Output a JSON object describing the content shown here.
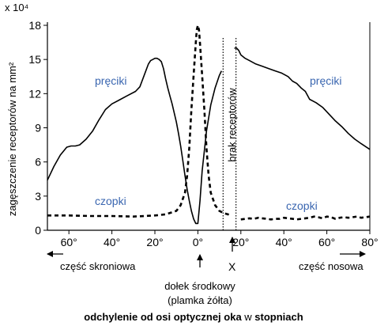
{
  "chart_data": {
    "type": "line",
    "title": "",
    "ylabel": "zagęszczenie receptorów na mm²",
    "y_scale_label": "x 10⁴",
    "xlabel_parts": [
      {
        "text": "odchylenie od osi optycznej oka",
        "bold": true
      },
      {
        "text": " w ",
        "bold": false
      },
      {
        "text": "stopniach",
        "bold": true
      }
    ],
    "xlim": [
      -70,
      80
    ],
    "ylim": [
      0,
      18
    ],
    "y_ticks": [
      0,
      3,
      6,
      9,
      12,
      15,
      18
    ],
    "x_ticks": [
      {
        "value": -60,
        "label": "60°"
      },
      {
        "value": -40,
        "label": "40°"
      },
      {
        "value": -20,
        "label": "20°"
      },
      {
        "value": 0,
        "label": "0°"
      },
      {
        "value": 20,
        "label": "20°"
      },
      {
        "value": 40,
        "label": "40°"
      },
      {
        "value": 60,
        "label": "60°"
      },
      {
        "value": 80,
        "label": "80°"
      }
    ],
    "series": [
      {
        "name": "pręciki",
        "style": "solid",
        "segments": [
          {
            "x": [
              -70,
              -67,
              -64,
              -61,
              -59,
              -57,
              -55,
              -52,
              -49,
              -46,
              -43,
              -40,
              -37,
              -33,
              -29,
              -27,
              -25,
              -23,
              -22,
              -21,
              -20,
              -19,
              -18,
              -17,
              -16,
              -15,
              -14,
              -13,
              -12,
              -11,
              -10,
              -9,
              -8,
              -7,
              -6,
              -5,
              -4,
              -3,
              -2,
              -1,
              0,
              1,
              2,
              4,
              6,
              8,
              10,
              11
            ],
            "y": [
              4.4,
              5.6,
              6.6,
              7.3,
              7.4,
              7.4,
              7.5,
              8.0,
              8.7,
              9.7,
              10.6,
              11.1,
              11.4,
              11.8,
              12.2,
              12.6,
              13.6,
              14.6,
              14.9,
              15.0,
              15.1,
              15.1,
              15.0,
              14.8,
              14.2,
              13.3,
              12.5,
              11.8,
              11.1,
              10.3,
              9.5,
              8.5,
              7.4,
              6.1,
              4.8,
              3.6,
              2.6,
              1.7,
              1.0,
              0.6,
              0.6,
              2.6,
              5.2,
              8.7,
              11.0,
              12.5,
              13.6,
              14.0
            ]
          },
          {
            "x": [
              17,
              18,
              19,
              20,
              22,
              24,
              27,
              30,
              33,
              36,
              39,
              42,
              44,
              46,
              48,
              50,
              52,
              55,
              58,
              61,
              64,
              67,
              70,
              73,
              76,
              80
            ],
            "y": [
              16.0,
              16.0,
              15.8,
              15.4,
              15.1,
              14.9,
              14.6,
              14.4,
              14.2,
              14.0,
              13.8,
              13.5,
              13.1,
              12.9,
              12.5,
              12.2,
              11.5,
              11.2,
              10.8,
              10.2,
              9.6,
              9.1,
              8.5,
              8.0,
              7.6,
              7.1
            ]
          }
        ]
      },
      {
        "name": "czopki",
        "style": "dashed",
        "segments": [
          {
            "x": [
              -70,
              -60,
              -50,
              -40,
              -30,
              -20,
              -15,
              -10,
              -8,
              -6,
              -5,
              -4,
              -3,
              -2,
              -1,
              -0.5,
              0,
              0.5,
              1,
              2,
              3,
              4,
              5,
              6,
              8,
              10,
              12,
              14,
              15
            ],
            "y": [
              1.3,
              1.3,
              1.25,
              1.25,
              1.2,
              1.3,
              1.4,
              1.7,
              2.2,
              3.3,
              4.8,
              7.2,
              10.6,
              13.6,
              16.4,
              17.6,
              18.0,
              17.6,
              16.4,
              13.6,
              10.6,
              7.2,
              4.8,
              3.3,
              2.2,
              1.7,
              1.5,
              1.4,
              1.3
            ]
          },
          {
            "x": [
              20,
              22,
              24,
              26,
              28,
              30,
              32,
              34,
              36,
              38,
              40,
              42,
              44,
              46,
              48,
              50,
              52,
              54,
              56,
              58,
              60,
              62,
              64,
              66,
              68,
              70,
              72,
              74,
              76,
              78,
              80
            ],
            "y": [
              0.95,
              1.0,
              1.05,
              1.0,
              1.1,
              1.05,
              1.0,
              0.95,
              1.0,
              1.0,
              1.1,
              1.05,
              1.0,
              0.95,
              1.0,
              1.05,
              1.1,
              1.2,
              1.15,
              1.05,
              1.2,
              1.15,
              1.0,
              1.1,
              1.15,
              1.1,
              1.15,
              1.2,
              1.1,
              1.15,
              1.2
            ]
          }
        ]
      }
    ],
    "annotations": {
      "rods_left": "pręciki",
      "rods_right": "pręciki",
      "cones_left": "czopki",
      "cones_right": "czopki",
      "blind_spot": "brak receptorów",
      "blind_spot_range": [
        11,
        17
      ],
      "blind_spot_marker": "X",
      "fovea_line1": "dołek środkowy",
      "fovea_line2": "(plamka żółta)",
      "temporal": "część skroniowa",
      "nasal": "część nosowa"
    }
  }
}
